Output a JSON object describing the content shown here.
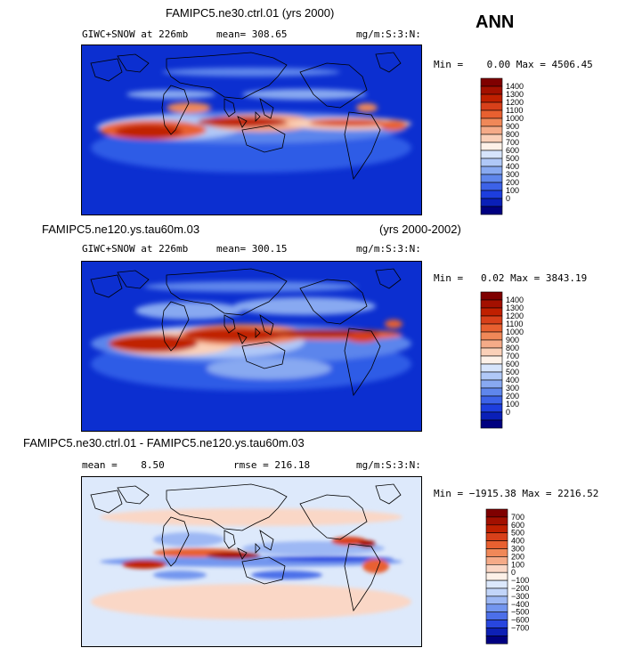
{
  "season": "ANN",
  "panels": [
    {
      "id": "p1",
      "title": "FAMIPC5.ne30.ctrl.01 (yrs 2000)",
      "years": "",
      "field": "GIWC+SNOW at 226mb",
      "mean": "mean= 308.65",
      "units": "mg/m:S:3:N:",
      "minmax": "Min =    0.00 Max = 4506.45"
    },
    {
      "id": "p2",
      "title": "FAMIPC5.ne120.ys.tau60m.03",
      "years": "(yrs 2000-2002)",
      "field": "GIWC+SNOW at 226mb",
      "mean": "mean= 300.15",
      "units": "mg/m:S:3:N:",
      "minmax": "Min =   0.02 Max = 3843.19"
    },
    {
      "id": "p3",
      "title": "FAMIPC5.ne30.ctrl.01 - FAMIPC5.ne120.ys.tau60m.03",
      "years": "",
      "mean": "mean =    8.50",
      "rmse": "rmse = 216.18",
      "units": "mg/m:S:3:N:",
      "minmax": "Min = −1915.38 Max = 2216.52"
    }
  ],
  "colorbars": {
    "abs_labels": [
      "1400",
      "1300",
      "1200",
      "1100",
      "1000",
      "900",
      "800",
      "700",
      "600",
      "500",
      "400",
      "300",
      "200",
      "100",
      "0"
    ],
    "abs_colors": [
      "#7f0000",
      "#a31000",
      "#c02000",
      "#d8401a",
      "#e86030",
      "#f08858",
      "#f5ab88",
      "#fad0b8",
      "#fdf1e8",
      "#d6e4fb",
      "#b0c8f7",
      "#88a9f1",
      "#5f86ec",
      "#3c62e8",
      "#1d3ede",
      "#0a1fb8",
      "#000080"
    ],
    "diff_labels": [
      "700",
      "600",
      "500",
      "400",
      "300",
      "200",
      "100",
      "0",
      "−100",
      "−200",
      "−300",
      "−400",
      "−500",
      "−600",
      "−700"
    ],
    "diff_colors": [
      "#7f0000",
      "#a31000",
      "#c02000",
      "#d8401a",
      "#e86030",
      "#f08858",
      "#f5ab88",
      "#fad7c6",
      "#fdf1e8",
      "#dce8fc",
      "#c2d5f9",
      "#9db8f4",
      "#7396ef",
      "#4c6fe9",
      "#2846df",
      "#0d20b5",
      "#000080"
    ]
  },
  "colors": {
    "ocean_background": "#0c2fd0",
    "diff_background": "#dde9fb"
  }
}
